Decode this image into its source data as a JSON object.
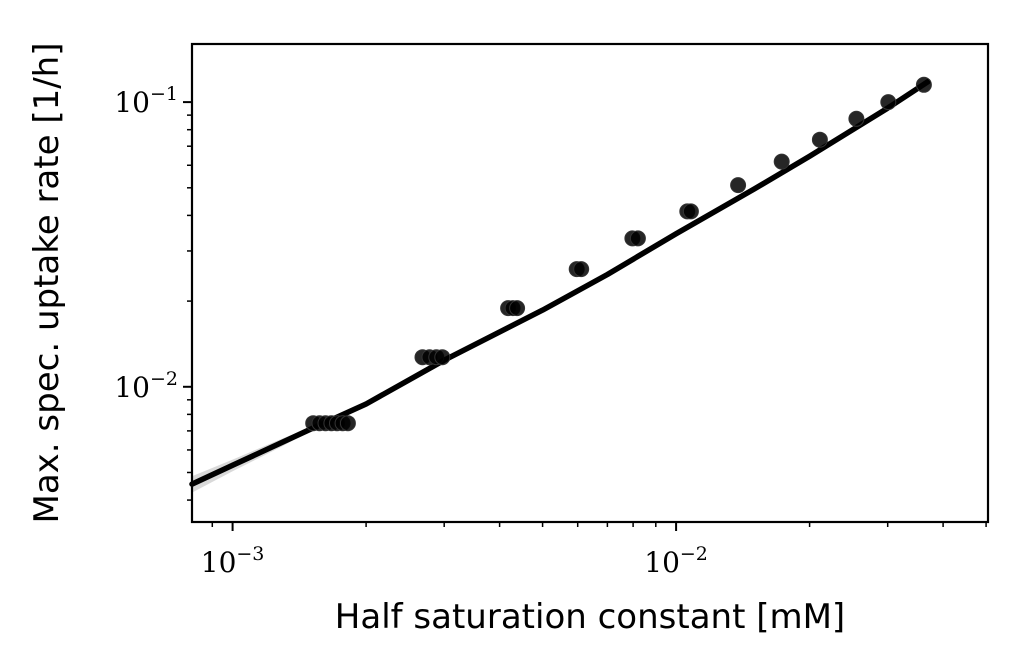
{
  "chart_data": {
    "type": "scatter",
    "title": "",
    "xlabel": "Half saturation constant [mM]",
    "ylabel": "Max. spec. uptake rate [1/h]",
    "xscale": "log",
    "yscale": "log",
    "xlim": [
      0.00081,
      0.0505
    ],
    "ylim": [
      0.00335,
      0.16
    ],
    "grid": false,
    "legend": "none",
    "x_ticks": [
      {
        "value": 0.001,
        "base": "10",
        "exp": "−3"
      },
      {
        "value": 0.01,
        "base": "10",
        "exp": "−2"
      }
    ],
    "y_ticks": [
      {
        "value": 0.01,
        "base": "10",
        "exp": "−2"
      },
      {
        "value": 0.1,
        "base": "10",
        "exp": "−1"
      }
    ],
    "points": {
      "color": "#000000",
      "x": [
        0.00152,
        0.00157,
        0.00162,
        0.00167,
        0.00172,
        0.00177,
        0.00182,
        0.00268,
        0.00278,
        0.00288,
        0.00297,
        0.00418,
        0.00428,
        0.00438,
        0.00597,
        0.00611,
        0.00797,
        0.0082,
        0.0106,
        0.0108,
        0.0138,
        0.0173,
        0.0211,
        0.0255,
        0.0301,
        0.0362
      ],
      "y": [
        0.00745,
        0.00745,
        0.00745,
        0.00745,
        0.00745,
        0.00745,
        0.00745,
        0.0127,
        0.0127,
        0.0127,
        0.0127,
        0.0189,
        0.0189,
        0.0189,
        0.0259,
        0.0259,
        0.0332,
        0.0332,
        0.0413,
        0.0413,
        0.0511,
        0.0618,
        0.0738,
        0.0874,
        0.1,
        0.115
      ]
    },
    "fit_line": {
      "color": "#000000",
      "x": [
        0.00081,
        0.001,
        0.0015,
        0.002,
        0.003,
        0.005,
        0.007,
        0.01,
        0.015,
        0.02,
        0.03,
        0.037
      ],
      "y": [
        0.00455,
        0.0053,
        0.0071,
        0.0087,
        0.0124,
        0.0186,
        0.0248,
        0.0345,
        0.0495,
        0.0645,
        0.0953,
        0.118
      ]
    },
    "confidence_band": {
      "color": "#d9d9d9",
      "x": [
        0.00081,
        0.001,
        0.0013,
        0.0015
      ],
      "lower": [
        0.00425,
        0.00505,
        0.0062,
        0.007
      ],
      "upper": [
        0.00485,
        0.00555,
        0.0066,
        0.0072
      ]
    }
  }
}
